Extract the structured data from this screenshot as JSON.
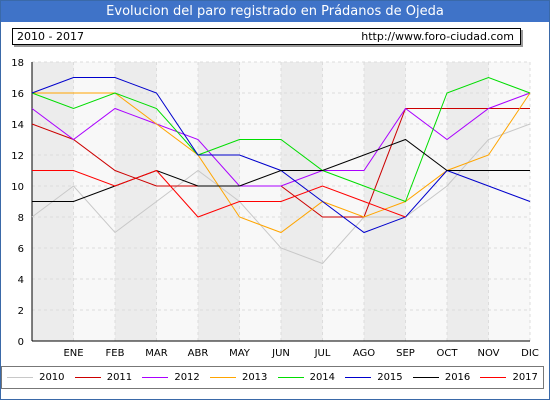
{
  "header": {
    "title": "Evolucion del paro registrado en Prádanos de Ojeda"
  },
  "info": {
    "years": "2010 - 2017",
    "url": "http://www.foro-ciudad.com"
  },
  "chart_data": {
    "type": "line",
    "title": "Evolucion del paro registrado en Prádanos de Ojeda",
    "categories": [
      "",
      "ENE",
      "FEB",
      "MAR",
      "ABR",
      "MAY",
      "JUN",
      "JUL",
      "AGO",
      "SEP",
      "OCT",
      "NOV",
      "DIC"
    ],
    "ylim": [
      0,
      18
    ],
    "yticks": [
      0,
      2,
      4,
      6,
      8,
      10,
      12,
      14,
      16,
      18
    ],
    "grid": true,
    "legend": "bottom",
    "series": [
      {
        "name": "2010",
        "color": "#c8c8c8",
        "values": [
          8,
          10,
          7,
          9,
          11,
          9,
          6,
          5,
          8,
          8,
          10,
          13,
          14
        ]
      },
      {
        "name": "2011",
        "color": "#cc0000",
        "values": [
          14,
          13,
          11,
          10,
          10,
          10,
          10,
          8,
          8,
          15,
          15,
          15,
          15
        ]
      },
      {
        "name": "2012",
        "color": "#aa00ff",
        "values": [
          15,
          13,
          15,
          14,
          13,
          10,
          10,
          11,
          11,
          15,
          13,
          15,
          16
        ]
      },
      {
        "name": "2013",
        "color": "#ffa500",
        "values": [
          16,
          16,
          16,
          14,
          12,
          8,
          7,
          9,
          8,
          9,
          11,
          12,
          16
        ]
      },
      {
        "name": "2014",
        "color": "#00dd00",
        "values": [
          16,
          15,
          16,
          15,
          12,
          13,
          13,
          11,
          10,
          9,
          16,
          17,
          16
        ]
      },
      {
        "name": "2015",
        "color": "#0000cc",
        "values": [
          16,
          17,
          17,
          16,
          12,
          12,
          11,
          9,
          7,
          8,
          11,
          10,
          9
        ]
      },
      {
        "name": "2016",
        "color": "#000000",
        "values": [
          9,
          9,
          10,
          11,
          10,
          10,
          11,
          11,
          12,
          13,
          11,
          11,
          11
        ]
      },
      {
        "name": "2017",
        "color": "#ff0000",
        "values": [
          11,
          11,
          10,
          11,
          8,
          9,
          9,
          10,
          9,
          8,
          null,
          null,
          null
        ]
      }
    ]
  }
}
